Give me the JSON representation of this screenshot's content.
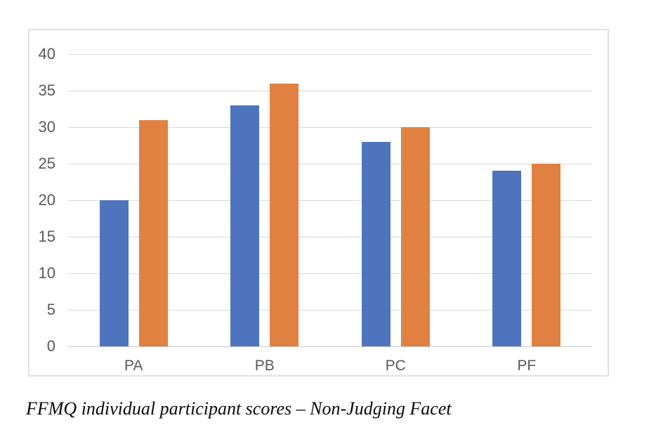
{
  "page": {
    "background": "#ffffff"
  },
  "caption": {
    "text": "FFMQ individual participant scores – Non-Judging Facet"
  },
  "chart_data": {
    "type": "bar",
    "title": "",
    "categories": [
      "PA",
      "PB",
      "PC",
      "PF"
    ],
    "series": [
      {
        "name": "blue-series",
        "color": "#4E74BE",
        "values": [
          20,
          33,
          28,
          24
        ]
      },
      {
        "name": "orange-series",
        "color": "#E08142",
        "values": [
          31,
          36,
          30,
          25
        ]
      }
    ],
    "ylim": [
      0,
      40
    ],
    "yticks": [
      0,
      5,
      10,
      15,
      20,
      25,
      30,
      35,
      40
    ],
    "xlabel": "",
    "ylabel": "",
    "grid": true,
    "legend_position": "none",
    "tick_label_color": "#595959",
    "gridline_color": "#D9D9D9",
    "plot_background": "#FFFFFF",
    "border_color": "#E2E2E2"
  }
}
